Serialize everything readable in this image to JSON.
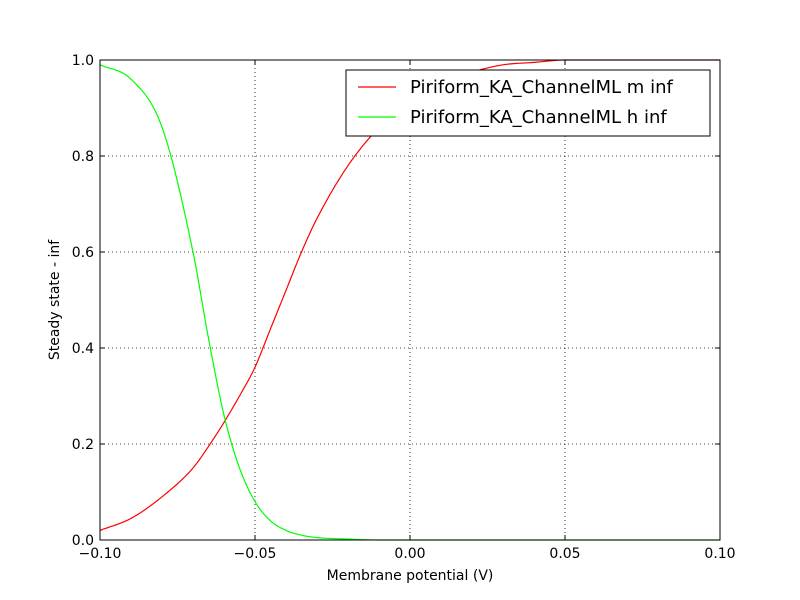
{
  "chart_data": {
    "type": "line",
    "title": "",
    "xlabel": "Membrane potential (V)",
    "ylabel": "Steady state - inf",
    "xlim": [
      -0.1,
      0.1
    ],
    "ylim": [
      0.0,
      1.0
    ],
    "x_ticks": [
      -0.1,
      -0.05,
      0.0,
      0.05,
      0.1
    ],
    "x_tick_labels": [
      "−0.10",
      "−0.05",
      "0.00",
      "0.05",
      "0.10"
    ],
    "y_ticks": [
      0.0,
      0.2,
      0.4,
      0.6,
      0.8,
      1.0
    ],
    "y_tick_labels": [
      "0.0",
      "0.2",
      "0.4",
      "0.6",
      "0.8",
      "1.0"
    ],
    "grid": true,
    "legend_position": "top-right",
    "x": [
      -0.1,
      -0.09,
      -0.08,
      -0.07,
      -0.065,
      -0.06,
      -0.055,
      -0.05,
      -0.045,
      -0.04,
      -0.035,
      -0.03,
      -0.02,
      -0.01,
      0.0,
      0.01,
      0.02,
      0.03,
      0.04,
      0.05,
      0.06,
      0.08,
      0.1
    ],
    "series": [
      {
        "name": "Piriform_KA_ChannelML m inf",
        "color": "#ff0000",
        "values": [
          0.02,
          0.045,
          0.09,
          0.15,
          0.195,
          0.245,
          0.3,
          0.36,
          0.44,
          0.52,
          0.6,
          0.67,
          0.78,
          0.86,
          0.92,
          0.955,
          0.975,
          0.99,
          0.995,
          1.0,
          1.0,
          1.0,
          1.0
        ]
      },
      {
        "name": "Piriform_KA_ChannelML h inf",
        "color": "#00ff00",
        "values": [
          0.99,
          0.96,
          0.86,
          0.6,
          0.42,
          0.26,
          0.15,
          0.08,
          0.04,
          0.02,
          0.01,
          0.005,
          0.002,
          0.0,
          0.0,
          0.0,
          0.0,
          0.0,
          0.0,
          0.0,
          0.0,
          0.0,
          0.0
        ]
      }
    ]
  }
}
